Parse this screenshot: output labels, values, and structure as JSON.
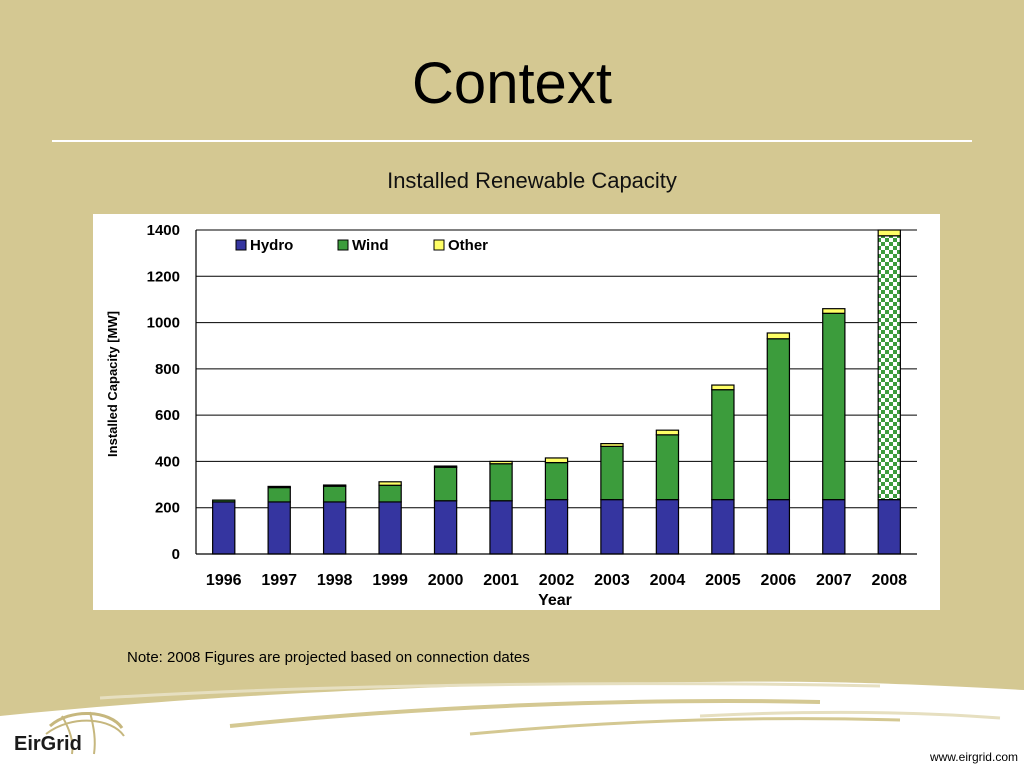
{
  "slide": {
    "title": "Context",
    "note": "Note: 2008 Figures are projected based on connection dates",
    "url": "www.eirgrid.com",
    "logo_text": "EirGrid"
  },
  "colors": {
    "background": "#d4c892",
    "hydro": "#3535a0",
    "wind": "#3c9c3c",
    "other": "#ffff66"
  },
  "chart_data": {
    "type": "bar",
    "stacked": true,
    "title": "Installed Renewable Capacity",
    "xlabel": "Year",
    "ylabel": "Installed Capacity [MW]",
    "ylim": [
      0,
      1400
    ],
    "yticks": [
      0,
      200,
      400,
      600,
      800,
      1000,
      1200,
      1400
    ],
    "grid": true,
    "legend_position": "top-left",
    "categories": [
      "1996",
      "1997",
      "1998",
      "1999",
      "2000",
      "2001",
      "2002",
      "2003",
      "2004",
      "2005",
      "2006",
      "2007",
      "2008"
    ],
    "series": [
      {
        "name": "Hydro",
        "color": "#3535a0",
        "values": [
          225,
          225,
          225,
          225,
          230,
          230,
          235,
          235,
          235,
          235,
          235,
          235,
          235
        ]
      },
      {
        "name": "Wind",
        "color": "#3c9c3c",
        "values": [
          8,
          62,
          68,
          72,
          145,
          160,
          160,
          230,
          280,
          475,
          695,
          805,
          1140
        ]
      },
      {
        "name": "Other",
        "color": "#ffff66",
        "values": [
          0,
          5,
          5,
          15,
          5,
          10,
          20,
          12,
          20,
          20,
          25,
          20,
          25
        ]
      }
    ],
    "projected_category": "2008"
  }
}
